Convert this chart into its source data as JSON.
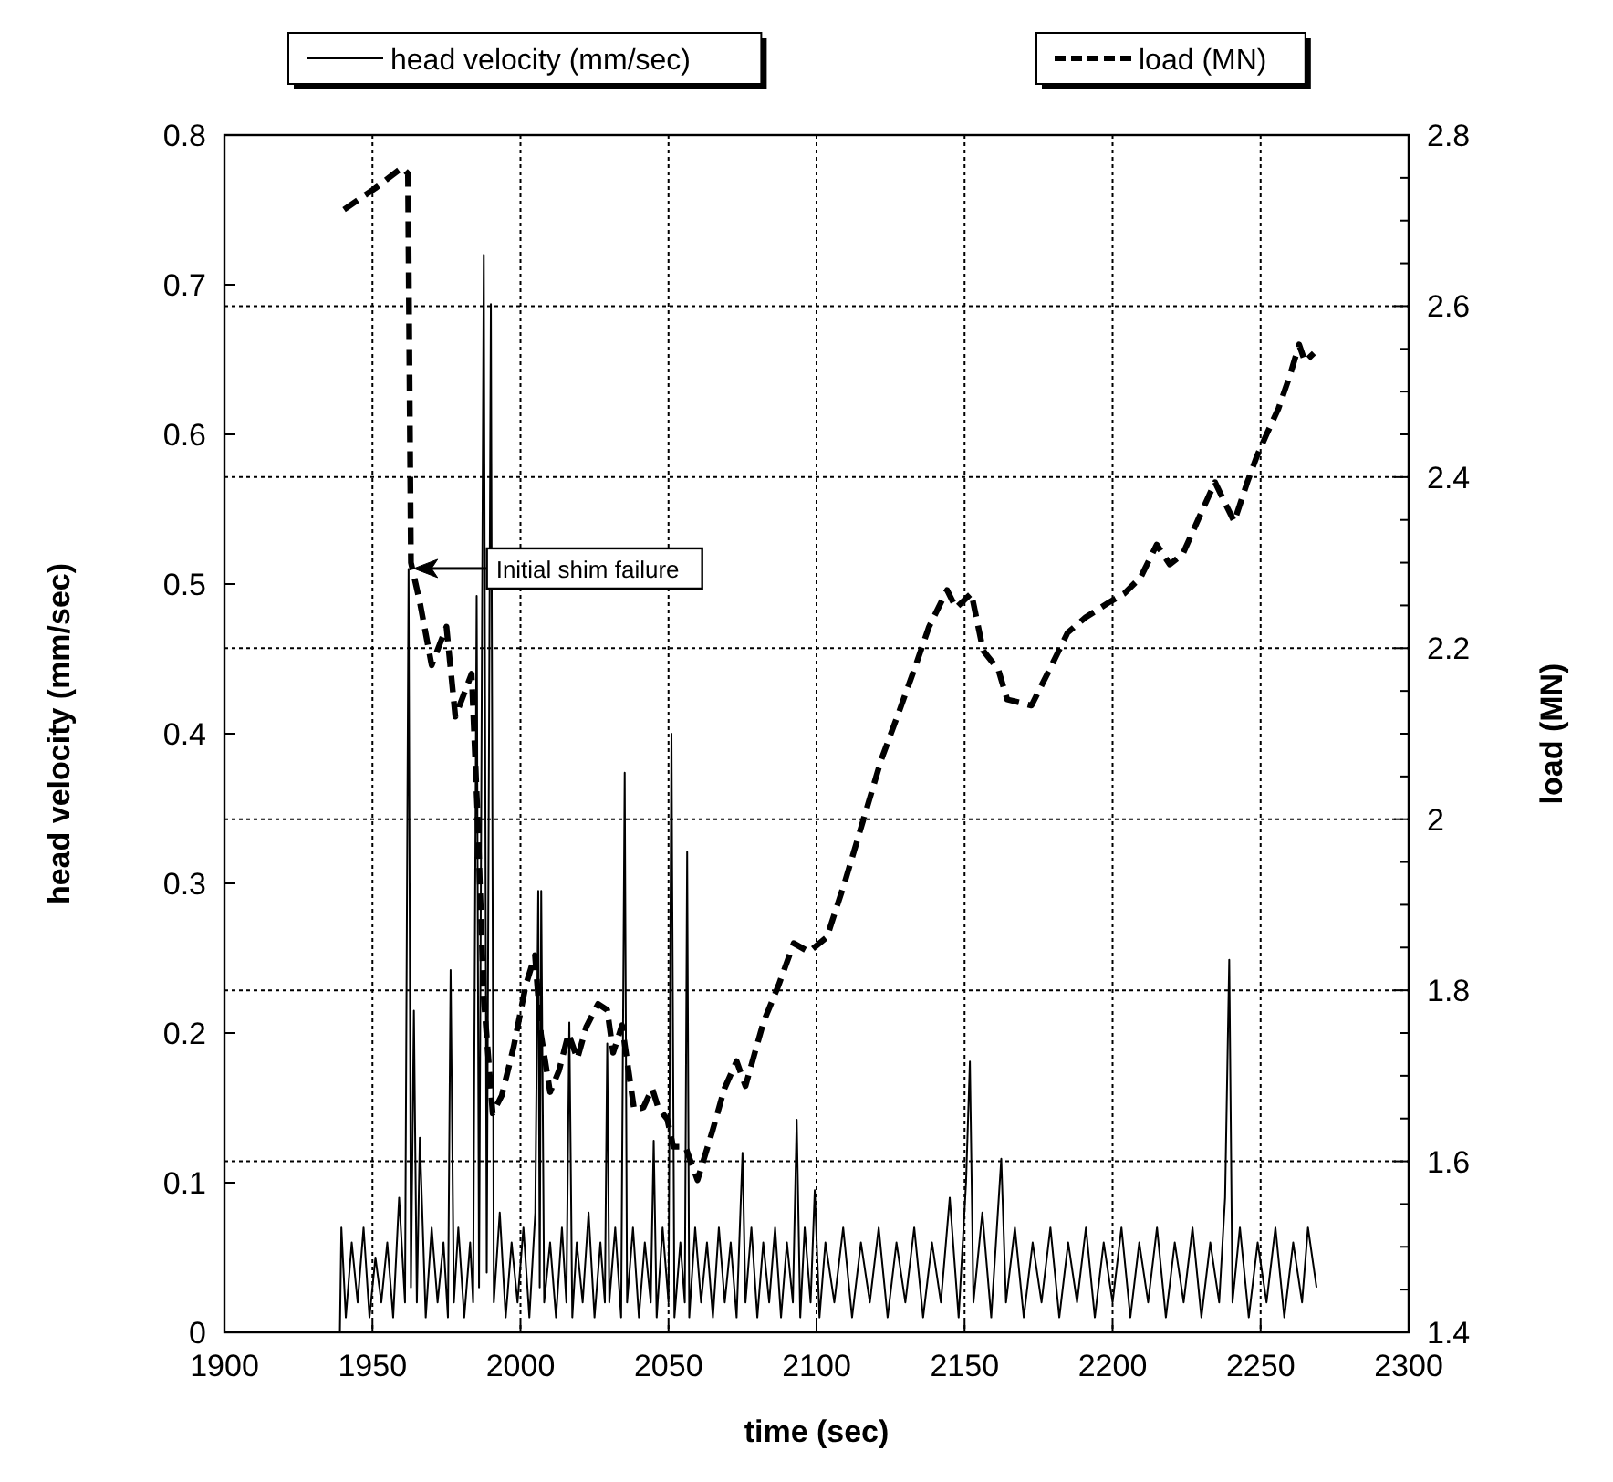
{
  "chart_data": {
    "type": "line",
    "xlabel": "time (sec)",
    "ylabel": "head velocity (mm/sec)",
    "y2label": "load (MN)",
    "xlim": [
      1900,
      2300
    ],
    "xticks": [
      1900,
      1950,
      2000,
      2050,
      2100,
      2150,
      2200,
      2250,
      2300
    ],
    "ylim": [
      0,
      0.8
    ],
    "yticks": [
      0,
      0.1,
      0.2,
      0.3,
      0.4,
      0.5,
      0.6,
      0.7,
      0.8
    ],
    "y2lim": [
      1.4,
      2.8
    ],
    "y2ticks": [
      {
        "value": 1.4,
        "label": "1.4"
      },
      {
        "value": 1.45,
        "label": null
      },
      {
        "value": 1.5,
        "label": null
      },
      {
        "value": 1.55,
        "label": null
      },
      {
        "value": 1.6,
        "label": "1.6"
      },
      {
        "value": 1.65,
        "label": null
      },
      {
        "value": 1.7,
        "label": null
      },
      {
        "value": 1.75,
        "label": null
      },
      {
        "value": 1.8,
        "label": "1.8"
      },
      {
        "value": 1.85,
        "label": null
      },
      {
        "value": 1.9,
        "label": null
      },
      {
        "value": 1.95,
        "label": null
      },
      {
        "value": 2,
        "label": "2"
      },
      {
        "value": 2.05,
        "label": null
      },
      {
        "value": 2.1,
        "label": null
      },
      {
        "value": 2.15,
        "label": null
      },
      {
        "value": 2.2,
        "label": "2.2"
      },
      {
        "value": 2.25,
        "label": null
      },
      {
        "value": 2.3,
        "label": null
      },
      {
        "value": 2.35,
        "label": null
      },
      {
        "value": 2.4,
        "label": "2.4"
      },
      {
        "value": 2.45,
        "label": null
      },
      {
        "value": 2.5,
        "label": null
      },
      {
        "value": 2.55,
        "label": null
      },
      {
        "value": 2.6,
        "label": "2.6"
      },
      {
        "value": 2.65,
        "label": null
      },
      {
        "value": 2.7,
        "label": null
      },
      {
        "value": 2.75,
        "label": null
      },
      {
        "value": 2.8,
        "label": "2.8"
      }
    ],
    "grid": true,
    "legend": "top",
    "marker": "none",
    "annotations": [
      "Initial shim failure"
    ],
    "series": [
      {
        "name": "head velocity (mm/sec)",
        "color": "#000000",
        "line_style": "solid",
        "x": [
          1939,
          1939.5,
          1941,
          1943,
          1945,
          1947,
          1949,
          1951,
          1953,
          1955,
          1957,
          1959,
          1961,
          1962.2,
          1963,
          1964,
          1965,
          1966,
          1968,
          1970,
          1972,
          1974,
          1975.5,
          1976.4,
          1977.5,
          1979,
          1981,
          1983,
          1984,
          1985.2,
          1986,
          1987.6,
          1988.6,
          1990,
          1991,
          1993,
          1995,
          1997,
          1999,
          2001,
          2003,
          2005,
          2006,
          2006.5,
          2007,
          2008,
          2010,
          2012,
          2014,
          2015.5,
          2016.5,
          2017.5,
          2019,
          2021,
          2023,
          2025,
          2027,
          2028.5,
          2029.3,
          2030,
          2032,
          2034,
          2035.2,
          2036,
          2038,
          2040,
          2042,
          2044,
          2045,
          2046,
          2048,
          2050,
          2051,
          2052,
          2054,
          2055.5,
          2056.3,
          2057,
          2059,
          2061,
          2063,
          2065,
          2067,
          2069,
          2071,
          2073,
          2075,
          2076,
          2078,
          2080,
          2082,
          2084,
          2086,
          2088,
          2090,
          2092,
          2093.3,
          2094.5,
          2096,
          2098,
          2099.4,
          2101,
          2103,
          2106,
          2109,
          2112,
          2115,
          2118,
          2121,
          2124,
          2127,
          2130,
          2133,
          2136,
          2139,
          2142,
          2145,
          2148,
          2150.5,
          2151.8,
          2153,
          2156,
          2159,
          2162.4,
          2164,
          2167,
          2170,
          2173,
          2176,
          2179,
          2182,
          2185,
          2188,
          2191,
          2194,
          2197,
          2200,
          2203,
          2206,
          2209,
          2212,
          2215,
          2218,
          2221,
          2224,
          2227,
          2230,
          2233,
          2236,
          2238,
          2239.4,
          2240.5,
          2243,
          2246,
          2249,
          2252,
          2255,
          2258,
          2261,
          2264,
          2266,
          2268.9
        ],
        "values": [
          0,
          0.07,
          0.01,
          0.06,
          0.02,
          0.07,
          0.01,
          0.05,
          0.02,
          0.06,
          0.01,
          0.09,
          0.02,
          0.51,
          0.03,
          0.215,
          0.02,
          0.13,
          0.01,
          0.07,
          0.02,
          0.06,
          0.01,
          0.242,
          0.02,
          0.07,
          0.01,
          0.06,
          0.02,
          0.492,
          0.03,
          0.72,
          0.04,
          0.687,
          0.02,
          0.08,
          0.01,
          0.06,
          0.02,
          0.07,
          0.01,
          0.08,
          0.295,
          0.03,
          0.295,
          0.02,
          0.06,
          0.01,
          0.07,
          0.02,
          0.207,
          0.01,
          0.06,
          0.02,
          0.08,
          0.01,
          0.06,
          0.02,
          0.193,
          0.02,
          0.07,
          0.01,
          0.374,
          0.02,
          0.07,
          0.01,
          0.06,
          0.02,
          0.128,
          0.01,
          0.07,
          0.02,
          0.4,
          0.01,
          0.06,
          0.02,
          0.321,
          0.01,
          0.07,
          0.02,
          0.06,
          0.01,
          0.07,
          0.02,
          0.06,
          0.01,
          0.12,
          0.02,
          0.07,
          0.01,
          0.06,
          0.02,
          0.07,
          0.01,
          0.06,
          0.02,
          0.142,
          0.01,
          0.07,
          0.02,
          0.095,
          0.01,
          0.06,
          0.02,
          0.07,
          0.01,
          0.06,
          0.02,
          0.07,
          0.01,
          0.06,
          0.02,
          0.07,
          0.01,
          0.06,
          0.02,
          0.09,
          0.01,
          0.1,
          0.181,
          0.02,
          0.08,
          0.01,
          0.116,
          0.02,
          0.07,
          0.01,
          0.06,
          0.02,
          0.07,
          0.01,
          0.06,
          0.02,
          0.07,
          0.01,
          0.06,
          0.02,
          0.07,
          0.01,
          0.06,
          0.02,
          0.07,
          0.01,
          0.06,
          0.02,
          0.07,
          0.01,
          0.06,
          0.02,
          0.09,
          0.249,
          0.02,
          0.07,
          0.01,
          0.06,
          0.02,
          0.07,
          0.01,
          0.06,
          0.02,
          0.07,
          0.03
        ]
      },
      {
        "name": "load (MN)",
        "color": "#000000",
        "line_style": "dashed",
        "axis": "y2",
        "x": [
          1940.4,
          1951,
          1960,
          1962,
          1963,
          1966,
          1970,
          1975,
          1978,
          1983.5,
          1985.5,
          1987.6,
          1990.6,
          1993.7,
          1997.7,
          2001.8,
          2004.9,
          2006.9,
          2010,
          2013,
          2016.2,
          2019.2,
          2022.2,
          2026.2,
          2029.3,
          2031.3,
          2034.3,
          2038.4,
          2041.5,
          2044.5,
          2046.5,
          2049.6,
          2051.6,
          2055.7,
          2059.8,
          2064.8,
          2068.9,
          2073,
          2076,
          2082.1,
          2087.2,
          2092.3,
          2097.4,
          2103.5,
          2109.6,
          2115.7,
          2121.8,
          2127.9,
          2133,
          2138,
          2144.1,
          2147.1,
          2152.3,
          2156.3,
          2161.4,
          2164.4,
          2172.6,
          2178.7,
          2184.8,
          2190.9,
          2199,
          2204,
          2209.5,
          2214.9,
          2219.3,
          2223.7,
          2229.1,
          2234.6,
          2237.8,
          2241.1,
          2245.5,
          2248.8,
          2252,
          2256,
          2260,
          2263,
          2265,
          2268
        ],
        "values": [
          2.713,
          2.738,
          2.762,
          2.755,
          2.3,
          2.254,
          2.18,
          2.225,
          2.12,
          2.17,
          2.005,
          1.79,
          1.656,
          1.677,
          1.734,
          1.806,
          1.841,
          1.749,
          1.681,
          1.706,
          1.749,
          1.72,
          1.757,
          1.784,
          1.777,
          1.727,
          1.759,
          1.66,
          1.663,
          1.685,
          1.663,
          1.649,
          1.617,
          1.617,
          1.578,
          1.635,
          1.685,
          1.717,
          1.688,
          1.763,
          1.806,
          1.855,
          1.845,
          1.862,
          1.927,
          1.998,
          2.069,
          2.126,
          2.175,
          2.225,
          2.268,
          2.247,
          2.264,
          2.197,
          2.175,
          2.14,
          2.133,
          2.175,
          2.218,
          2.236,
          2.254,
          2.264,
          2.283,
          2.321,
          2.298,
          2.31,
          2.352,
          2.394,
          2.371,
          2.348,
          2.394,
          2.425,
          2.45,
          2.48,
          2.52,
          2.555,
          2.535,
          2.545
        ]
      }
    ]
  }
}
